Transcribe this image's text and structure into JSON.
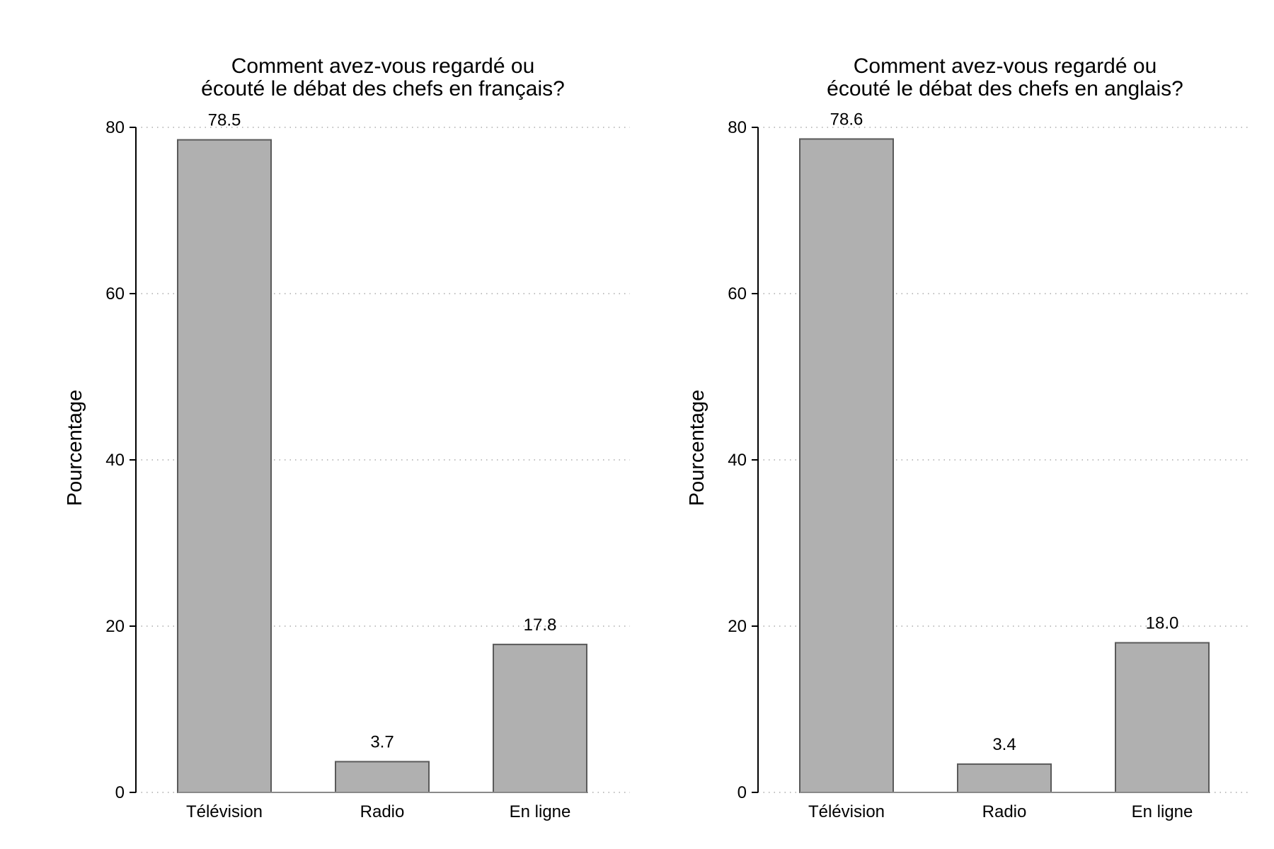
{
  "chart_data": [
    {
      "type": "bar",
      "title_line1": "Comment avez-vous regardé ou",
      "title_line2": "écouté le débat des chefs en français?",
      "ylabel": "Pourcentage",
      "categories": [
        "Télévision",
        "Radio",
        "En ligne"
      ],
      "values": [
        78.5,
        3.7,
        17.8
      ],
      "value_labels": [
        "78.5",
        "3.7",
        "17.8"
      ],
      "yticks": [
        "0",
        "20",
        "40",
        "60",
        "80"
      ],
      "ylim": [
        0,
        80
      ],
      "grid": true,
      "bar_color": "#b0b0b0"
    },
    {
      "type": "bar",
      "title_line1": "Comment avez-vous regardé ou",
      "title_line2": "écouté le débat des chefs en anglais?",
      "ylabel": "Pourcentage",
      "categories": [
        "Télévision",
        "Radio",
        "En ligne"
      ],
      "values": [
        78.6,
        3.4,
        18.0
      ],
      "value_labels": [
        "78.6",
        "3.4",
        "18.0"
      ],
      "yticks": [
        "0",
        "20",
        "40",
        "60",
        "80"
      ],
      "ylim": [
        0,
        80
      ],
      "grid": true,
      "bar_color": "#b0b0b0"
    }
  ]
}
